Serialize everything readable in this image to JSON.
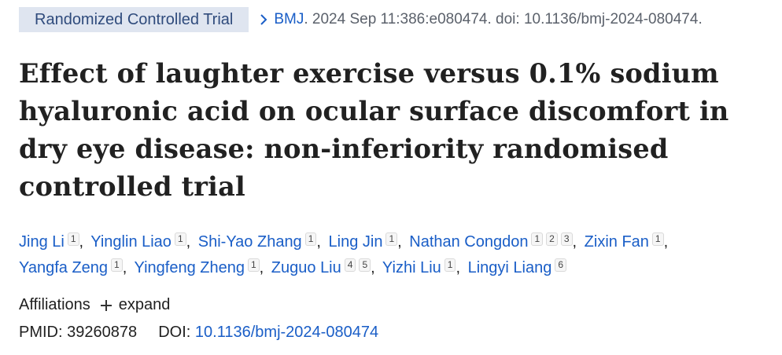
{
  "header": {
    "article_type": "Randomized Controlled Trial",
    "journal": "BMJ",
    "citation_rest": ". 2024 Sep 11:386:e080474. doi: 10.1136/bmj-2024-080474."
  },
  "title": "Effect of laughter exercise versus 0.1% sodium hyaluronic acid on ocular surface discomfort in dry eye disease: non-inferiority randomised controlled trial",
  "authors": [
    {
      "name": "Jing Li",
      "affils": [
        "1"
      ]
    },
    {
      "name": "Yinglin Liao",
      "affils": [
        "1"
      ]
    },
    {
      "name": "Shi-Yao Zhang",
      "affils": [
        "1"
      ]
    },
    {
      "name": "Ling Jin",
      "affils": [
        "1"
      ]
    },
    {
      "name": "Nathan Congdon",
      "affils": [
        "1",
        "2",
        "3"
      ]
    },
    {
      "name": "Zixin Fan",
      "affils": [
        "1"
      ]
    },
    {
      "name": "Yangfa Zeng",
      "affils": [
        "1"
      ]
    },
    {
      "name": "Yingfeng Zheng",
      "affils": [
        "1"
      ]
    },
    {
      "name": "Zuguo Liu",
      "affils": [
        "4",
        "5"
      ]
    },
    {
      "name": "Yizhi Liu",
      "affils": [
        "1"
      ]
    },
    {
      "name": "Lingyi Liang",
      "affils": [
        "6"
      ]
    }
  ],
  "affiliations": {
    "label": "Affiliations",
    "expand_label": "expand"
  },
  "identifiers": {
    "pmid_label": "PMID:",
    "pmid": "39260878",
    "doi_label": "DOI:",
    "doi": "10.1136/bmj-2024-080474"
  },
  "colors": {
    "link": "#1a5ec7",
    "badge_bg": "#dfe5f0",
    "badge_text": "#2f4b7c"
  },
  "icons": [
    "chevron-right-icon",
    "plus-icon"
  ]
}
